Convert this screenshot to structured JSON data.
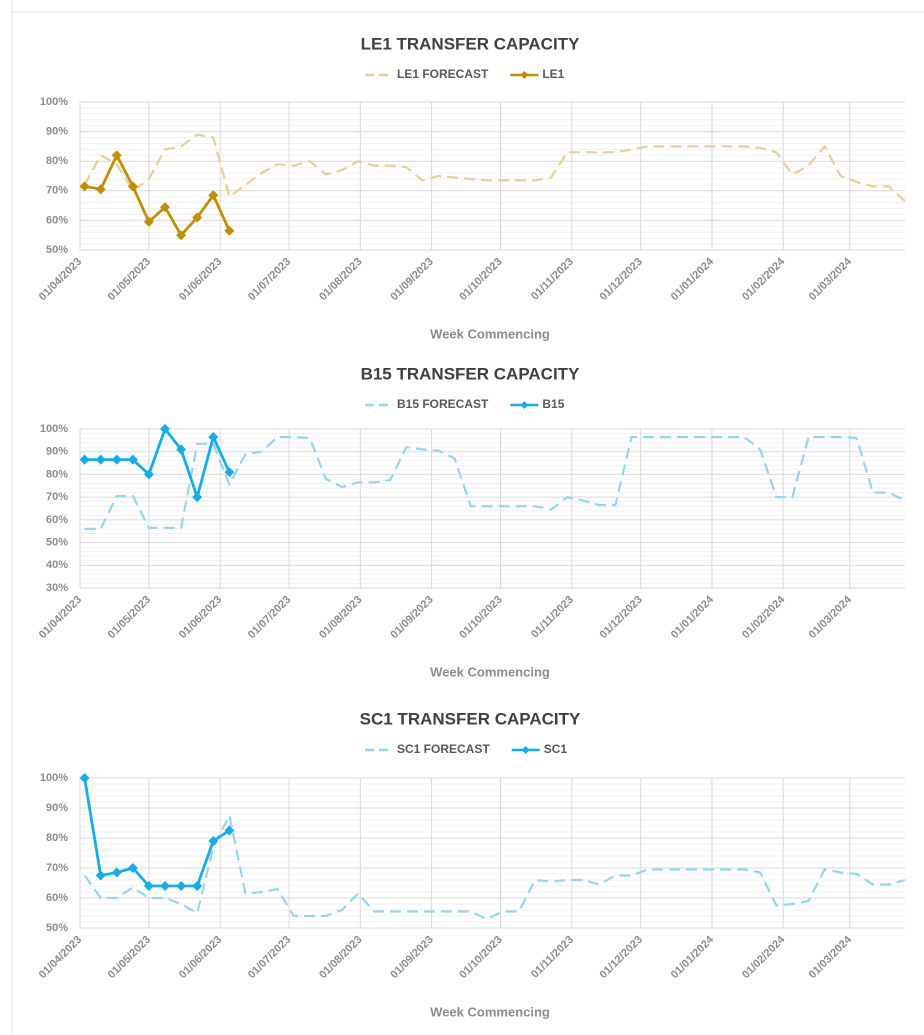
{
  "chart_data": [
    {
      "type": "line",
      "title": "LE1 TRANSFER CAPACITY",
      "x_label": "Week Commencing",
      "x": [
        "03/04/2023",
        "10/04/2023",
        "17/04/2023",
        "24/04/2023",
        "01/05/2023",
        "08/05/2023",
        "15/05/2023",
        "22/05/2023",
        "29/05/2023",
        "05/06/2023",
        "12/06/2023",
        "19/06/2023",
        "26/06/2023",
        "03/07/2023",
        "10/07/2023",
        "17/07/2023",
        "24/07/2023",
        "31/07/2023",
        "07/08/2023",
        "14/08/2023",
        "21/08/2023",
        "28/08/2023",
        "04/09/2023",
        "11/09/2023",
        "18/09/2023",
        "25/09/2023",
        "02/10/2023",
        "09/10/2023",
        "16/10/2023",
        "23/10/2023",
        "30/10/2023",
        "06/11/2023",
        "13/11/2023",
        "20/11/2023",
        "27/11/2023",
        "04/12/2023",
        "11/12/2023",
        "18/12/2023",
        "25/12/2023",
        "01/01/2024",
        "08/01/2024",
        "15/01/2024",
        "22/01/2024",
        "29/01/2024",
        "05/02/2024",
        "12/02/2024",
        "19/02/2024",
        "26/02/2024",
        "04/03/2024",
        "11/03/2024",
        "18/03/2024",
        "25/03/2024"
      ],
      "xlim": [
        "01/04/2023",
        "25/03/2024"
      ],
      "xticks": [
        "01/04/2023",
        "01/05/2023",
        "01/06/2023",
        "01/07/2023",
        "01/08/2023",
        "01/09/2023",
        "01/10/2023",
        "01/11/2023",
        "01/12/2023",
        "01/01/2024",
        "01/02/2024",
        "01/03/2024"
      ],
      "ylim": [
        50,
        100
      ],
      "yticks": [
        {
          "value": 50,
          "label": "50%"
        },
        {
          "value": 60,
          "label": "60%"
        },
        {
          "value": 70,
          "label": "70%"
        },
        {
          "value": 80,
          "label": "80%"
        },
        {
          "value": 90,
          "label": "90%"
        },
        {
          "value": 100,
          "label": "100%"
        }
      ],
      "grid": true,
      "legend": "top",
      "series": [
        {
          "name": "LE1 FORECAST",
          "color": "#e8cf94",
          "line_style": "dashed",
          "values": [
            72,
            82,
            79,
            70,
            74,
            84,
            85,
            89,
            88,
            68,
            72,
            76,
            79,
            78.5,
            80,
            75.5,
            77,
            80,
            78.5,
            78.5,
            78,
            73.5,
            75,
            74.5,
            74,
            73.5,
            73.5,
            73.5,
            73.5,
            74.5,
            83,
            83,
            83,
            83,
            84,
            85,
            85,
            85,
            85,
            85,
            85,
            85,
            84.5,
            83,
            75.5,
            78.5,
            85,
            75,
            73,
            71.5,
            71.5,
            66.5
          ]
        },
        {
          "name": "LE1",
          "color": "#bf8f00",
          "line_style": "solid",
          "marker": "diamond",
          "values": [
            71.5,
            70.5,
            82,
            71.5,
            59.5,
            64.5,
            55,
            61,
            68.5,
            56.5,
            null,
            null,
            null,
            null,
            null,
            null,
            null,
            null,
            null,
            null,
            null,
            null,
            null,
            null,
            null,
            null,
            null,
            null,
            null,
            null,
            null,
            null,
            null,
            null,
            null,
            null,
            null,
            null,
            null,
            null,
            null,
            null,
            null,
            null,
            null,
            null,
            null,
            null,
            null,
            null,
            null,
            null
          ]
        }
      ]
    },
    {
      "type": "line",
      "title": "B15 TRANSFER CAPACITY",
      "x_label": "Week Commencing",
      "x": [
        "03/04/2023",
        "10/04/2023",
        "17/04/2023",
        "24/04/2023",
        "01/05/2023",
        "08/05/2023",
        "15/05/2023",
        "22/05/2023",
        "29/05/2023",
        "05/06/2023",
        "12/06/2023",
        "19/06/2023",
        "26/06/2023",
        "03/07/2023",
        "10/07/2023",
        "17/07/2023",
        "24/07/2023",
        "31/07/2023",
        "07/08/2023",
        "14/08/2023",
        "21/08/2023",
        "28/08/2023",
        "04/09/2023",
        "11/09/2023",
        "18/09/2023",
        "25/09/2023",
        "02/10/2023",
        "09/10/2023",
        "16/10/2023",
        "23/10/2023",
        "30/10/2023",
        "06/11/2023",
        "13/11/2023",
        "20/11/2023",
        "27/11/2023",
        "04/12/2023",
        "11/12/2023",
        "18/12/2023",
        "25/12/2023",
        "01/01/2024",
        "08/01/2024",
        "15/01/2024",
        "22/01/2024",
        "29/01/2024",
        "05/02/2024",
        "12/02/2024",
        "19/02/2024",
        "26/02/2024",
        "04/03/2024",
        "11/03/2024",
        "18/03/2024",
        "25/03/2024"
      ],
      "xlim": [
        "01/04/2023",
        "25/03/2024"
      ],
      "xticks": [
        "01/04/2023",
        "01/05/2023",
        "01/06/2023",
        "01/07/2023",
        "01/08/2023",
        "01/09/2023",
        "01/10/2023",
        "01/11/2023",
        "01/12/2023",
        "01/01/2024",
        "01/02/2024",
        "01/03/2024"
      ],
      "ylim": [
        30,
        100
      ],
      "yticks": [
        {
          "value": 30,
          "label": "30%"
        },
        {
          "value": 40,
          "label": "40%"
        },
        {
          "value": 50,
          "label": "50%"
        },
        {
          "value": 60,
          "label": "60%"
        },
        {
          "value": 70,
          "label": "70%"
        },
        {
          "value": 80,
          "label": "80%"
        },
        {
          "value": 90,
          "label": "90%"
        },
        {
          "value": 100,
          "label": "100%"
        }
      ],
      "grid": true,
      "legend": "top",
      "series": [
        {
          "name": "B15 FORECAST",
          "color": "#93d6f2",
          "line_style": "dashed",
          "values": [
            56,
            56,
            70.5,
            70.5,
            56.5,
            56.5,
            56.5,
            93.5,
            93.5,
            75.5,
            89,
            90,
            96.5,
            96.5,
            96,
            78,
            74.5,
            76.5,
            76.5,
            77.5,
            92,
            91,
            90.5,
            87,
            66,
            66,
            66,
            66,
            66,
            64.5,
            70,
            68.5,
            66.5,
            66.5,
            96.5,
            96.5,
            96.5,
            96.5,
            96.5,
            96.5,
            96.5,
            96.5,
            91,
            70,
            70,
            96.5,
            96.5,
            96.5,
            96,
            72,
            72,
            68.5
          ]
        },
        {
          "name": "B15",
          "color": "#16ade6",
          "line_style": "solid",
          "marker": "diamond",
          "values": [
            86.5,
            86.5,
            86.5,
            86.5,
            80,
            100,
            91,
            70,
            96.5,
            81,
            null,
            null,
            null,
            null,
            null,
            null,
            null,
            null,
            null,
            null,
            null,
            null,
            null,
            null,
            null,
            null,
            null,
            null,
            null,
            null,
            null,
            null,
            null,
            null,
            null,
            null,
            null,
            null,
            null,
            null,
            null,
            null,
            null,
            null,
            null,
            null,
            null,
            null,
            null,
            null,
            null,
            null
          ]
        }
      ]
    },
    {
      "type": "line",
      "title": "SC1 TRANSFER CAPACITY",
      "x_label": "Week Commencing",
      "x": [
        "03/04/2023",
        "10/04/2023",
        "17/04/2023",
        "24/04/2023",
        "01/05/2023",
        "08/05/2023",
        "15/05/2023",
        "22/05/2023",
        "29/05/2023",
        "05/06/2023",
        "12/06/2023",
        "19/06/2023",
        "26/06/2023",
        "03/07/2023",
        "10/07/2023",
        "17/07/2023",
        "24/07/2023",
        "31/07/2023",
        "07/08/2023",
        "14/08/2023",
        "21/08/2023",
        "28/08/2023",
        "04/09/2023",
        "11/09/2023",
        "18/09/2023",
        "25/09/2023",
        "02/10/2023",
        "09/10/2023",
        "16/10/2023",
        "23/10/2023",
        "30/10/2023",
        "06/11/2023",
        "13/11/2023",
        "20/11/2023",
        "27/11/2023",
        "04/12/2023",
        "11/12/2023",
        "18/12/2023",
        "25/12/2023",
        "01/01/2024",
        "08/01/2024",
        "15/01/2024",
        "22/01/2024",
        "29/01/2024",
        "05/02/2024",
        "12/02/2024",
        "19/02/2024",
        "26/02/2024",
        "04/03/2024",
        "11/03/2024",
        "18/03/2024",
        "25/03/2024"
      ],
      "xlim": [
        "01/04/2023",
        "25/03/2024"
      ],
      "xticks": [
        "01/04/2023",
        "01/05/2023",
        "01/06/2023",
        "01/07/2023",
        "01/08/2023",
        "01/09/2023",
        "01/10/2023",
        "01/11/2023",
        "01/12/2023",
        "01/01/2024",
        "01/02/2024",
        "01/03/2024"
      ],
      "ylim": [
        50,
        100
      ],
      "yticks": [
        {
          "value": 50,
          "label": "50%"
        },
        {
          "value": 60,
          "label": "60%"
        },
        {
          "value": 70,
          "label": "70%"
        },
        {
          "value": 80,
          "label": "80%"
        },
        {
          "value": 90,
          "label": "90%"
        },
        {
          "value": 100,
          "label": "100%"
        }
      ],
      "grid": true,
      "legend": "top",
      "series": [
        {
          "name": "SC1 FORECAST",
          "color": "#93d6f2",
          "line_style": "dashed",
          "values": [
            67.5,
            60,
            60,
            63.5,
            60,
            60,
            58,
            55,
            77,
            87.5,
            61.5,
            62,
            63,
            54,
            54,
            54,
            56,
            61.5,
            55.5,
            55.5,
            55.5,
            55.5,
            55.5,
            55.5,
            55.5,
            53,
            55.5,
            55.5,
            66,
            65.5,
            66,
            66,
            64.5,
            67.5,
            67.5,
            69.5,
            69.5,
            69.5,
            69.5,
            69.5,
            69.5,
            69.5,
            68.5,
            57.5,
            58,
            59,
            69.5,
            68.5,
            68,
            64.5,
            64.5,
            66
          ]
        },
        {
          "name": "SC1",
          "color": "#16ade6",
          "line_style": "solid",
          "marker": "diamond",
          "values": [
            100,
            67.5,
            68.5,
            70,
            64,
            64,
            64,
            64,
            79,
            82.5,
            null,
            null,
            null,
            null,
            null,
            null,
            null,
            null,
            null,
            null,
            null,
            null,
            null,
            null,
            null,
            null,
            null,
            null,
            null,
            null,
            null,
            null,
            null,
            null,
            null,
            null,
            null,
            null,
            null,
            null,
            null,
            null,
            null,
            null,
            null,
            null,
            null,
            null,
            null,
            null,
            null,
            null
          ]
        }
      ]
    }
  ]
}
